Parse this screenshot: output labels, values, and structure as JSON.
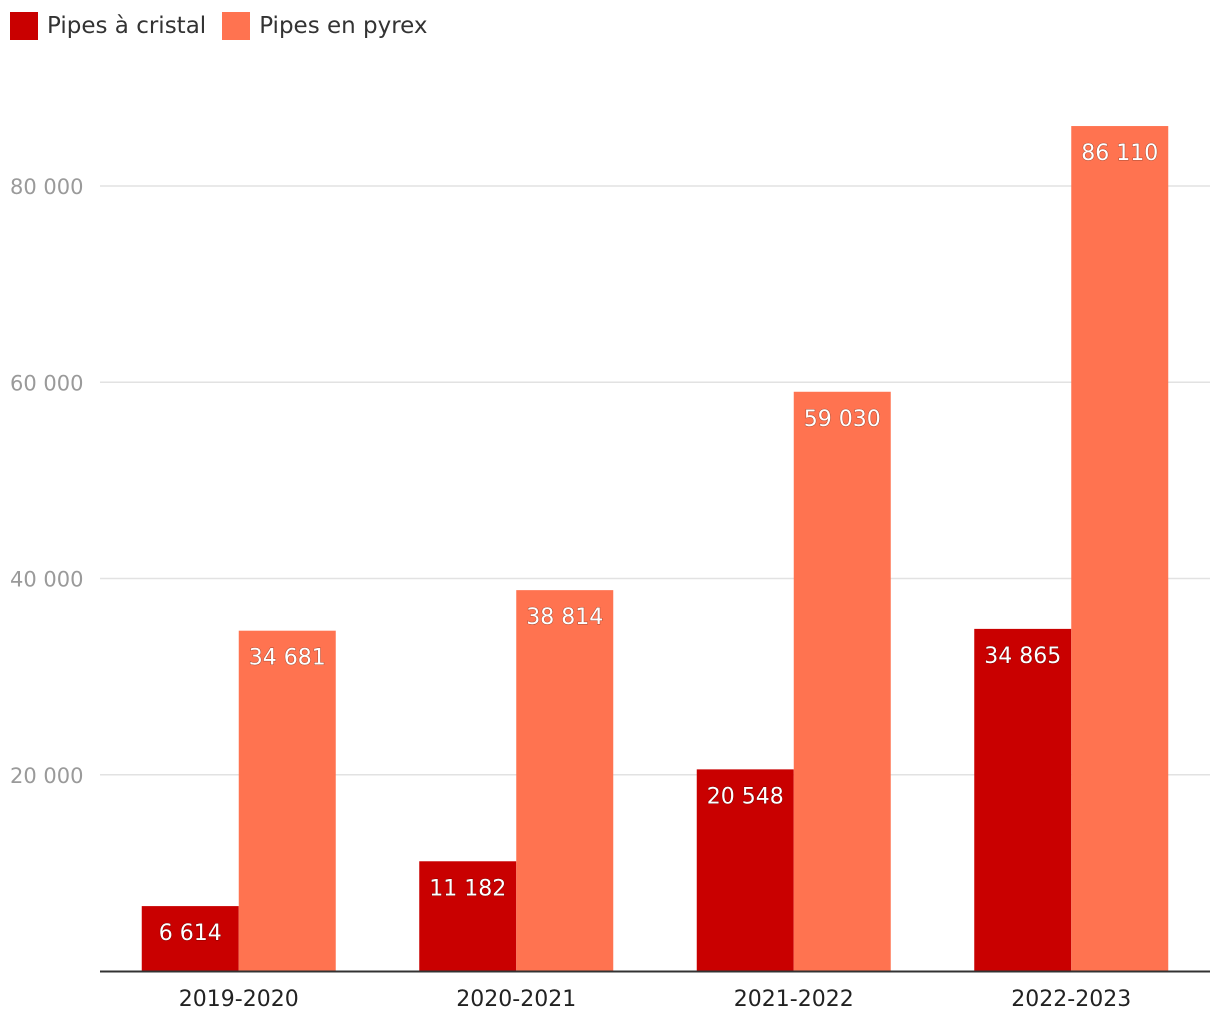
{
  "chart_data": {
    "type": "bar",
    "categories": [
      "2019-2020",
      "2020-2021",
      "2021-2022",
      "2022-2023"
    ],
    "series": [
      {
        "name": "Pipes à cristal",
        "color": "#c90000",
        "values": [
          6614,
          11182,
          20548,
          34865
        ],
        "labels": [
          "6 614",
          "11 182",
          "20 548",
          "34 865"
        ]
      },
      {
        "name": "Pipes en pyrex",
        "color": "#ff7350",
        "values": [
          34681,
          38814,
          59030,
          86110
        ],
        "labels": [
          "34 681",
          "38 814",
          "59 030",
          "86 110"
        ]
      }
    ],
    "yticks": [
      20000,
      40000,
      60000,
      80000
    ],
    "ytick_labels": [
      "20 000",
      "40 000",
      "60 000",
      "80 000"
    ],
    "ylim": [
      0,
      90000
    ],
    "grid": true,
    "legend": "top-left",
    "title": "",
    "xlabel": "",
    "ylabel": ""
  }
}
